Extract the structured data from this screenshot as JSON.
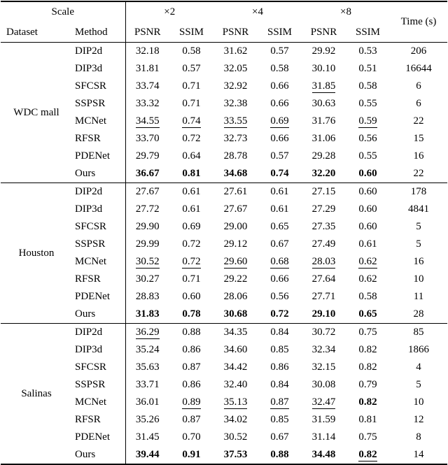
{
  "table": {
    "header": {
      "scale_label": "Scale",
      "dataset_label": "Dataset",
      "method_label": "Method",
      "scales": [
        "×2",
        "×4",
        "×8"
      ],
      "metric_labels": [
        "PSNR",
        "SSIM"
      ],
      "time_label": "Time (s)"
    },
    "groups": [
      {
        "dataset": "WDC mall",
        "rows": [
          {
            "method": "DIP2d",
            "values": [
              {
                "v": "32.18"
              },
              {
                "v": "0.58"
              },
              {
                "v": "31.62"
              },
              {
                "v": "0.57"
              },
              {
                "v": "29.92"
              },
              {
                "v": "0.53"
              }
            ],
            "time": "206"
          },
          {
            "method": "DIP3d",
            "values": [
              {
                "v": "31.81"
              },
              {
                "v": "0.57"
              },
              {
                "v": "32.05"
              },
              {
                "v": "0.58"
              },
              {
                "v": "30.10"
              },
              {
                "v": "0.51"
              }
            ],
            "time": "16644"
          },
          {
            "method": "SFCSR",
            "values": [
              {
                "v": "33.74"
              },
              {
                "v": "0.71"
              },
              {
                "v": "32.92"
              },
              {
                "v": "0.66"
              },
              {
                "v": "31.85",
                "u": true
              },
              {
                "v": "0.58"
              }
            ],
            "time": "6"
          },
          {
            "method": "SSPSR",
            "values": [
              {
                "v": "33.32"
              },
              {
                "v": "0.71"
              },
              {
                "v": "32.38"
              },
              {
                "v": "0.66"
              },
              {
                "v": "30.63"
              },
              {
                "v": "0.55"
              }
            ],
            "time": "6"
          },
          {
            "method": "MCNet",
            "values": [
              {
                "v": "34.55",
                "u": true
              },
              {
                "v": "0.74",
                "u": true
              },
              {
                "v": "33.55",
                "u": true
              },
              {
                "v": "0.69",
                "u": true
              },
              {
                "v": "31.76"
              },
              {
                "v": "0.59",
                "u": true
              }
            ],
            "time": "22"
          },
          {
            "method": "RFSR",
            "values": [
              {
                "v": "33.70"
              },
              {
                "v": "0.72"
              },
              {
                "v": "32.73"
              },
              {
                "v": "0.66"
              },
              {
                "v": "31.06"
              },
              {
                "v": "0.56"
              }
            ],
            "time": "15"
          },
          {
            "method": "PDENet",
            "values": [
              {
                "v": "29.79"
              },
              {
                "v": "0.64"
              },
              {
                "v": "28.78"
              },
              {
                "v": "0.57"
              },
              {
                "v": "29.28"
              },
              {
                "v": "0.55"
              }
            ],
            "time": "16"
          },
          {
            "method": "Ours",
            "values": [
              {
                "v": "36.67",
                "b": true
              },
              {
                "v": "0.81",
                "b": true
              },
              {
                "v": "34.68",
                "b": true
              },
              {
                "v": "0.74",
                "b": true
              },
              {
                "v": "32.20",
                "b": true
              },
              {
                "v": "0.60",
                "b": true
              }
            ],
            "time": "22"
          }
        ]
      },
      {
        "dataset": "Houston",
        "rows": [
          {
            "method": "DIP2d",
            "values": [
              {
                "v": "27.67"
              },
              {
                "v": "0.61"
              },
              {
                "v": "27.61"
              },
              {
                "v": "0.61"
              },
              {
                "v": "27.15"
              },
              {
                "v": "0.60"
              }
            ],
            "time": "178"
          },
          {
            "method": "DIP3d",
            "values": [
              {
                "v": "27.72"
              },
              {
                "v": "0.61"
              },
              {
                "v": "27.67"
              },
              {
                "v": "0.61"
              },
              {
                "v": "27.29"
              },
              {
                "v": "0.60"
              }
            ],
            "time": "4841"
          },
          {
            "method": "SFCSR",
            "values": [
              {
                "v": "29.90"
              },
              {
                "v": "0.69"
              },
              {
                "v": "29.00"
              },
              {
                "v": "0.65"
              },
              {
                "v": "27.35"
              },
              {
                "v": "0.60"
              }
            ],
            "time": "5"
          },
          {
            "method": "SSPSR",
            "values": [
              {
                "v": "29.99"
              },
              {
                "v": "0.72"
              },
              {
                "v": "29.12"
              },
              {
                "v": "0.67"
              },
              {
                "v": "27.49"
              },
              {
                "v": "0.61"
              }
            ],
            "time": "5"
          },
          {
            "method": "MCNet",
            "values": [
              {
                "v": "30.52",
                "u": true
              },
              {
                "v": "0.72",
                "u": true
              },
              {
                "v": "29.60",
                "u": true
              },
              {
                "v": "0.68",
                "u": true
              },
              {
                "v": "28.03",
                "u": true
              },
              {
                "v": "0.62",
                "u": true
              }
            ],
            "time": "16"
          },
          {
            "method": "RFSR",
            "values": [
              {
                "v": "30.27"
              },
              {
                "v": "0.71"
              },
              {
                "v": "29.22"
              },
              {
                "v": "0.66"
              },
              {
                "v": "27.64"
              },
              {
                "v": "0.62"
              }
            ],
            "time": "10"
          },
          {
            "method": "PDENet",
            "values": [
              {
                "v": "28.83"
              },
              {
                "v": "0.60"
              },
              {
                "v": "28.06"
              },
              {
                "v": "0.56"
              },
              {
                "v": "27.71"
              },
              {
                "v": "0.58"
              }
            ],
            "time": "11"
          },
          {
            "method": "Ours",
            "values": [
              {
                "v": "31.83",
                "b": true
              },
              {
                "v": "0.78",
                "b": true
              },
              {
                "v": "30.68",
                "b": true
              },
              {
                "v": "0.72",
                "b": true
              },
              {
                "v": "29.10",
                "b": true
              },
              {
                "v": "0.65",
                "b": true
              }
            ],
            "time": "28"
          }
        ]
      },
      {
        "dataset": "Salinas",
        "rows": [
          {
            "method": "DIP2d",
            "values": [
              {
                "v": "36.29",
                "u": true
              },
              {
                "v": "0.88"
              },
              {
                "v": "34.35"
              },
              {
                "v": "0.84"
              },
              {
                "v": "30.72"
              },
              {
                "v": "0.75"
              }
            ],
            "time": "85"
          },
          {
            "method": "DIP3d",
            "values": [
              {
                "v": "35.24"
              },
              {
                "v": "0.86"
              },
              {
                "v": "34.60"
              },
              {
                "v": "0.85"
              },
              {
                "v": "32.34"
              },
              {
                "v": "0.82"
              }
            ],
            "time": "1866"
          },
          {
            "method": "SFCSR",
            "values": [
              {
                "v": "35.63"
              },
              {
                "v": "0.87"
              },
              {
                "v": "34.42"
              },
              {
                "v": "0.86"
              },
              {
                "v": "32.15"
              },
              {
                "v": "0.82"
              }
            ],
            "time": "4"
          },
          {
            "method": "SSPSR",
            "values": [
              {
                "v": "33.71"
              },
              {
                "v": "0.86"
              },
              {
                "v": "32.40"
              },
              {
                "v": "0.84"
              },
              {
                "v": "30.08"
              },
              {
                "v": "0.79"
              }
            ],
            "time": "5"
          },
          {
            "method": "MCNet",
            "values": [
              {
                "v": "36.01"
              },
              {
                "v": "0.89",
                "u": true
              },
              {
                "v": "35.13",
                "u": true
              },
              {
                "v": "0.87",
                "u": true
              },
              {
                "v": "32.47",
                "u": true
              },
              {
                "v": "0.82",
                "b": true
              }
            ],
            "time": "10"
          },
          {
            "method": "RFSR",
            "values": [
              {
                "v": "35.26"
              },
              {
                "v": "0.87"
              },
              {
                "v": "34.02"
              },
              {
                "v": "0.85"
              },
              {
                "v": "31.59"
              },
              {
                "v": "0.81"
              }
            ],
            "time": "12"
          },
          {
            "method": "PDENet",
            "values": [
              {
                "v": "31.45"
              },
              {
                "v": "0.70"
              },
              {
                "v": "30.52"
              },
              {
                "v": "0.67"
              },
              {
                "v": "31.14"
              },
              {
                "v": "0.75"
              }
            ],
            "time": "8"
          },
          {
            "method": "Ours",
            "values": [
              {
                "v": "39.44",
                "b": true
              },
              {
                "v": "0.91",
                "b": true
              },
              {
                "v": "37.53",
                "b": true
              },
              {
                "v": "0.88",
                "b": true
              },
              {
                "v": "34.48",
                "b": true
              },
              {
                "v": "0.82",
                "b": true,
                "u": true
              }
            ],
            "time": "14"
          }
        ]
      }
    ]
  }
}
